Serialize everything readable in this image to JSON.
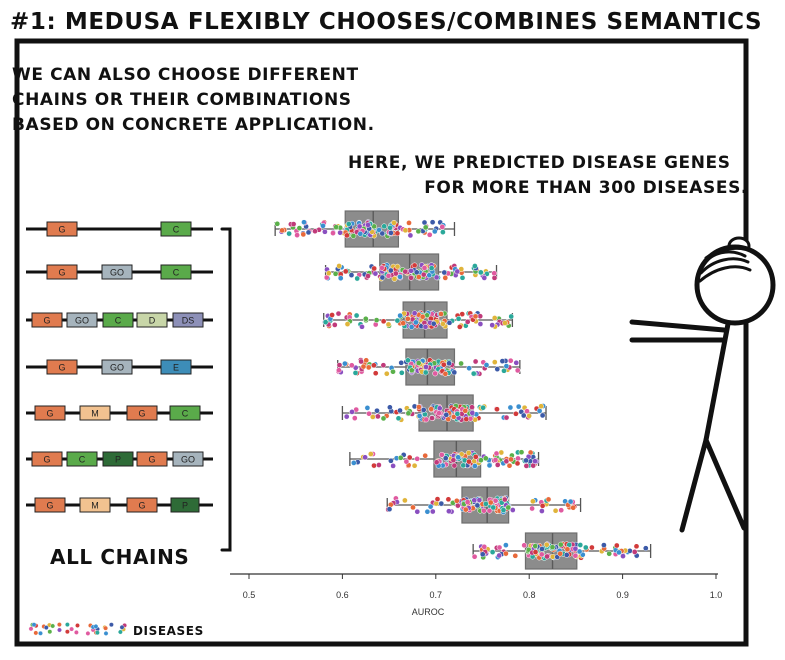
{
  "header": {
    "title": "#1: MEDUSA FLEXIBLY CHOOSES/COMBINES SEMANTICS"
  },
  "panel": {
    "intro_lines": [
      "WE CAN ALSO CHOOSE DIFFERENT",
      "CHAINS OR THEIR COMBINATIONS",
      "BASED ON CONCRETE APPLICATION."
    ],
    "speech_lines": [
      "HERE, WE PREDICTED DISEASE GENES",
      "FOR MORE THAN 300 DISEASES."
    ],
    "all_chains_label": "ALL CHAINS",
    "legend_label": "DISEASES"
  },
  "colors": {
    "G": "#e07b4f",
    "GO": "#a6b4bd",
    "C": "#5aaa4a",
    "D": "#c8d6a8",
    "DS": "#8d90b8",
    "E": "#3d8db8",
    "M": "#f2c290",
    "P": "#2e6b37",
    "box": "#8c8c8c",
    "dot_palette": [
      "#c03a7a",
      "#3a8fd0",
      "#e8693a",
      "#8a4fc0",
      "#5ab04a",
      "#d23a3a",
      "#3c5aa8",
      "#e0b43a",
      "#2aa89a",
      "#e05aa0"
    ]
  },
  "chains": [
    {
      "nodes": [
        "G",
        "C"
      ]
    },
    {
      "nodes": [
        "G",
        "GO",
        "C"
      ]
    },
    {
      "nodes": [
        "G",
        "GO",
        "C",
        "D",
        "DS"
      ]
    },
    {
      "nodes": [
        "G",
        "GO",
        "E"
      ]
    },
    {
      "nodes": [
        "G",
        "M",
        "G",
        "C"
      ]
    },
    {
      "nodes": [
        "G",
        "C",
        "P",
        "G",
        "GO"
      ]
    },
    {
      "nodes": [
        "G",
        "M",
        "G",
        "P"
      ]
    }
  ],
  "chart_data": {
    "type": "box",
    "xlabel": "AUROC",
    "xlim": [
      0.5,
      1.0
    ],
    "xticks": [
      "0.5",
      "0.6",
      "0.7",
      "0.8",
      "0.9",
      "1.0"
    ],
    "categories": [
      "G-C",
      "G-GO-C",
      "G-GO-C-D-DS",
      "G-GO-E",
      "G-M-G-C",
      "G-C-P-G-GO",
      "G-M-G-P",
      "ALL CHAINS"
    ],
    "boxes": [
      {
        "whisker_low": 0.528,
        "q1": 0.603,
        "median": 0.633,
        "q3": 0.66,
        "whisker_high": 0.72
      },
      {
        "whisker_low": 0.582,
        "q1": 0.64,
        "median": 0.672,
        "q3": 0.703,
        "whisker_high": 0.765
      },
      {
        "whisker_low": 0.58,
        "q1": 0.665,
        "median": 0.688,
        "q3": 0.712,
        "whisker_high": 0.782
      },
      {
        "whisker_low": 0.595,
        "q1": 0.668,
        "median": 0.691,
        "q3": 0.72,
        "whisker_high": 0.79
      },
      {
        "whisker_low": 0.6,
        "q1": 0.682,
        "median": 0.712,
        "q3": 0.74,
        "whisker_high": 0.818
      },
      {
        "whisker_low": 0.608,
        "q1": 0.698,
        "median": 0.722,
        "q3": 0.748,
        "whisker_high": 0.81
      },
      {
        "whisker_low": 0.648,
        "q1": 0.728,
        "median": 0.755,
        "q3": 0.778,
        "whisker_high": 0.855
      },
      {
        "whisker_low": 0.74,
        "q1": 0.796,
        "median": 0.825,
        "q3": 0.851,
        "whisker_high": 0.93
      }
    ]
  }
}
